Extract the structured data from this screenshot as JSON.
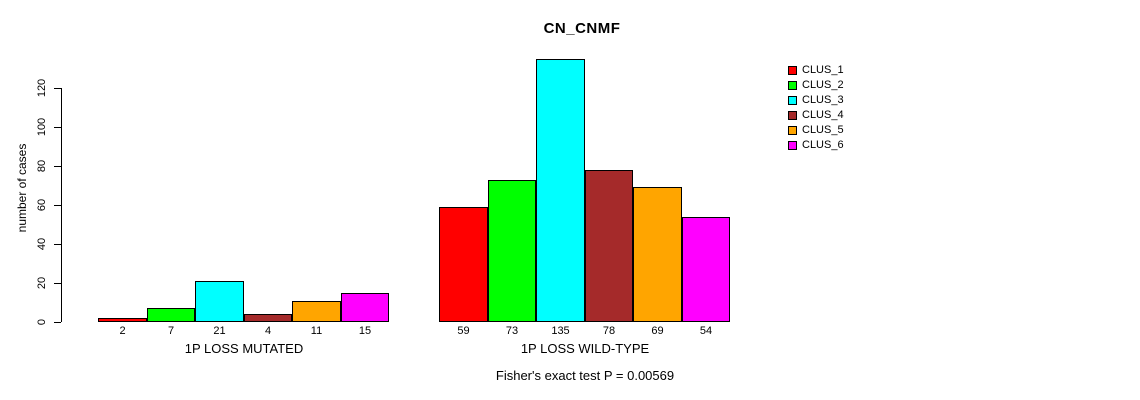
{
  "chart_data": {
    "type": "bar",
    "title": "CN_CNMF",
    "ylabel": "number of cases",
    "categories": [
      "1P LOSS MUTATED",
      "1P LOSS WILD-TYPE"
    ],
    "series": [
      {
        "name": "CLUS_1",
        "color": "#ff0000",
        "values": [
          2,
          59
        ]
      },
      {
        "name": "CLUS_2",
        "color": "#00ff00",
        "values": [
          7,
          73
        ]
      },
      {
        "name": "CLUS_3",
        "color": "#00ffff",
        "values": [
          21,
          135
        ]
      },
      {
        "name": "CLUS_4",
        "color": "#a52a2a",
        "values": [
          4,
          78
        ]
      },
      {
        "name": "CLUS_5",
        "color": "#ffa500",
        "values": [
          11,
          69
        ]
      },
      {
        "name": "CLUS_6",
        "color": "#ff00ff",
        "values": [
          15,
          54
        ]
      }
    ],
    "yticks": [
      0,
      20,
      40,
      60,
      80,
      100,
      120
    ],
    "ylim": [
      0,
      135
    ],
    "grid": false,
    "bar_value_labels": true,
    "legend_position": "right",
    "axis_color": "#000000",
    "bar_border_color": "#000000",
    "caption": "Fisher's exact test P = 0.00569"
  }
}
